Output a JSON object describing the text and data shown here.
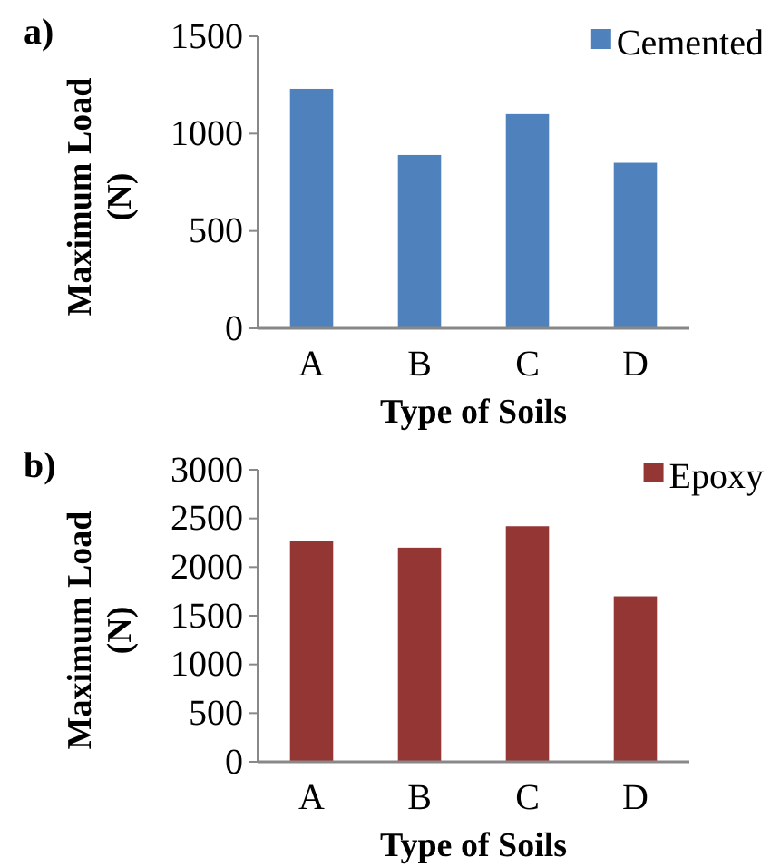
{
  "chart_data": [
    {
      "type": "bar",
      "title": "a)",
      "xlabel": "Type of Soils",
      "ylabel": "Maximum Load (N)",
      "categories": [
        "A",
        "B",
        "C",
        "D"
      ],
      "series": [
        {
          "name": "Cemented",
          "color": "#4f81bd",
          "values": [
            1230,
            890,
            1100,
            850
          ]
        }
      ],
      "ylim": [
        0,
        1500
      ],
      "yticks": [
        0,
        500,
        1000,
        1500
      ],
      "legend": "top right"
    },
    {
      "type": "bar",
      "title": "b)",
      "xlabel": "Type of Soils",
      "ylabel": "Maximum Load (N)",
      "categories": [
        "A",
        "B",
        "C",
        "D"
      ],
      "series": [
        {
          "name": "Epoxy",
          "color": "#943634",
          "values": [
            2270,
            2200,
            2420,
            1700
          ]
        }
      ],
      "ylim": [
        0,
        3000
      ],
      "yticks": [
        0,
        500,
        1000,
        1500,
        2000,
        2500,
        3000
      ],
      "legend": "top right"
    }
  ]
}
